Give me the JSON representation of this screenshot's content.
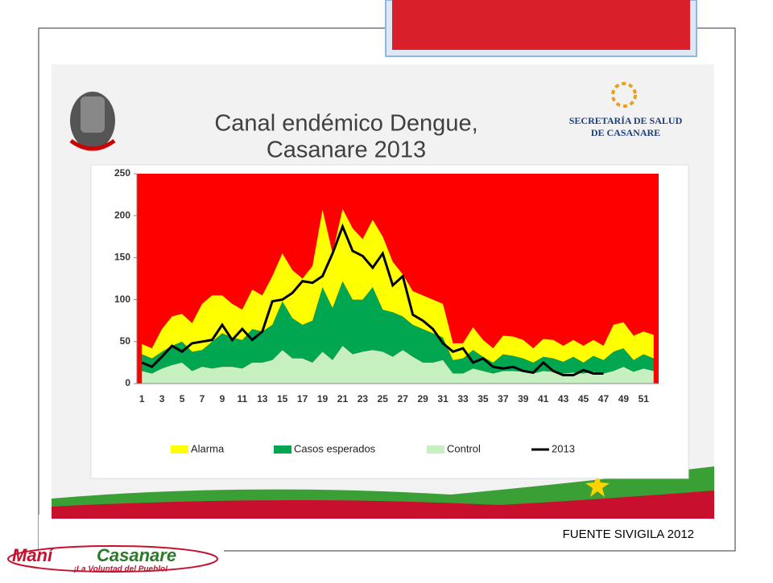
{
  "chart_data": {
    "type": "area",
    "title": [
      "Canal endémico Dengue,",
      "Casanare 2013"
    ],
    "categories": [
      1,
      null,
      3,
      null,
      5,
      null,
      7,
      null,
      9,
      null,
      11,
      null,
      13,
      null,
      15,
      null,
      17,
      null,
      19,
      null,
      21,
      null,
      23,
      null,
      25,
      null,
      27,
      null,
      29,
      null,
      31,
      null,
      33,
      null,
      35,
      null,
      37,
      null,
      39,
      null,
      41,
      null,
      43,
      null,
      45,
      null,
      47,
      null,
      49,
      null,
      51,
      null
    ],
    "zone_color": "#ff0000",
    "series": [
      {
        "name": "Alarma",
        "type": "area",
        "color": "#ffff00",
        "values": [
          12,
          12,
          27,
          35,
          33,
          34,
          55,
          55,
          45,
          40,
          36,
          47,
          43,
          58,
          57,
          57,
          55,
          65,
          92,
          65,
          86,
          85,
          72,
          80,
          87,
          60,
          50,
          40,
          40,
          40,
          40,
          20,
          18,
          27,
          20,
          17,
          22,
          23,
          22,
          17,
          21,
          22,
          19,
          20,
          20,
          19,
          17,
          32,
          31,
          29,
          27,
          28
        ]
      },
      {
        "name": "Casos esperados",
        "type": "area",
        "color": "#00a650",
        "values": [
          20,
          18,
          20,
          23,
          25,
          23,
          20,
          32,
          40,
          35,
          34,
          40,
          37,
          42,
          58,
          48,
          40,
          50,
          77,
          62,
          77,
          65,
          62,
          75,
          50,
          53,
          40,
          38,
          40,
          35,
          27,
          16,
          18,
          22,
          17,
          13,
          20,
          18,
          16,
          13,
          17,
          16,
          14,
          19,
          13,
          19,
          16,
          23,
          22,
          14,
          17,
          15
        ]
      },
      {
        "name": "Control",
        "type": "area",
        "color": "#c6f0c0",
        "values": [
          15,
          12,
          18,
          22,
          25,
          15,
          20,
          18,
          20,
          20,
          18,
          25,
          25,
          28,
          40,
          30,
          30,
          25,
          38,
          28,
          45,
          35,
          38,
          40,
          38,
          32,
          40,
          32,
          25,
          25,
          28,
          12,
          12,
          18,
          15,
          12,
          15,
          15,
          14,
          12,
          15,
          14,
          12,
          13,
          12,
          14,
          12,
          15,
          20,
          14,
          18,
          15
        ]
      },
      {
        "name": "2013",
        "type": "line",
        "color": "#000000",
        "values": [
          25,
          20,
          32,
          45,
          38,
          48,
          50,
          52,
          70,
          52,
          65,
          52,
          62,
          98,
          100,
          108,
          122,
          120,
          128,
          155,
          187,
          158,
          152,
          138,
          155,
          117,
          128,
          82,
          75,
          65,
          48,
          38,
          42,
          25,
          30,
          20,
          18,
          20,
          15,
          13,
          25,
          15,
          10,
          10,
          16,
          12,
          12,
          null,
          null,
          null,
          null,
          null
        ]
      }
    ],
    "ylim": [
      0,
      250
    ],
    "yticks": [
      0,
      50,
      100,
      150,
      200,
      250
    ],
    "grid": false,
    "legend": "bottom"
  },
  "source": "FUENTE SIVIGILA 2012",
  "logos": {
    "secretaria": [
      "SECRETARÍA DE SALUD",
      "DE CASANARE"
    ],
    "brand": [
      "Maní",
      "Casanare"
    ],
    "tagline": "¡La Voluntad del Pueblo!"
  }
}
